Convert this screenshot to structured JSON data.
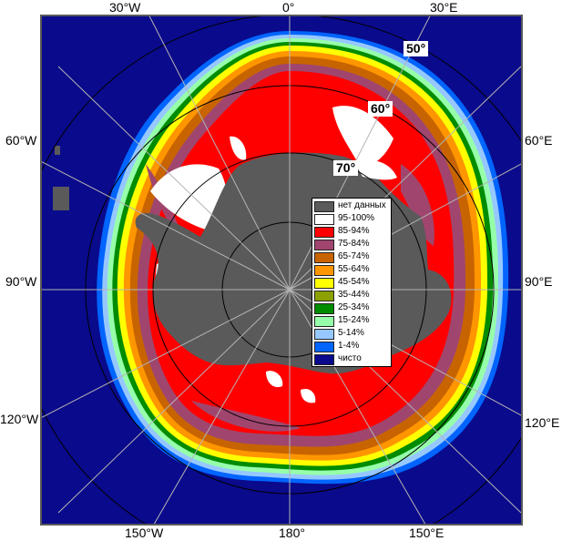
{
  "map": {
    "projection": "south-polar-stereographic",
    "colors": {
      "open_water": "#0a0a8c",
      "land_no_data": "#5a5a5a",
      "grid": "#b4b4b4",
      "frame": "#5a5a5a"
    }
  },
  "longitude_labels": {
    "lon_30w": "30°W",
    "lon_0": "0°",
    "lon_30e": "30°E",
    "lon_60w": "60°W",
    "lon_60e": "60°E",
    "lon_90w": "90°W",
    "lon_90e": "90°E",
    "lon_120w": "120°W",
    "lon_120e": "120°E",
    "lon_150w": "150°W",
    "lon_180": "180°",
    "lon_150e": "150°E"
  },
  "latitude_labels": {
    "lat_50": "50°",
    "lat_60": "60°",
    "lat_70": "70°"
  },
  "legend": {
    "items": [
      {
        "label": "нет данных",
        "color": "#5a5a5a"
      },
      {
        "label": "95-100%",
        "color": "#ffffff"
      },
      {
        "label": "85-94%",
        "color": "#ff0000"
      },
      {
        "label": "75-84%",
        "color": "#a0466e"
      },
      {
        "label": "65-74%",
        "color": "#c86400"
      },
      {
        "label": "55-64%",
        "color": "#ff9600"
      },
      {
        "label": "45-54%",
        "color": "#ffff00"
      },
      {
        "label": "35-44%",
        "color": "#8ca000"
      },
      {
        "label": "25-34%",
        "color": "#008c00"
      },
      {
        "label": "15-24%",
        "color": "#96ffaa"
      },
      {
        "label": "5-14%",
        "color": "#96c8ff"
      },
      {
        "label": "1-4%",
        "color": "#0064ff"
      },
      {
        "label": "чисто",
        "color": "#0a0a8c"
      }
    ]
  }
}
